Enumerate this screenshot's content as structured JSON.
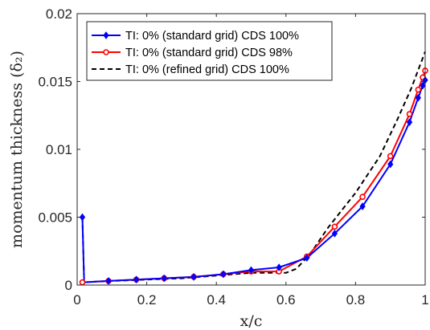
{
  "chart_data": {
    "type": "line",
    "xlabel": "x/c",
    "ylabel": "momentum thickness (δ₂)",
    "xlim": [
      0,
      1
    ],
    "ylim": [
      0,
      0.02
    ],
    "xticks": [
      0,
      0.2,
      0.4,
      0.6,
      0.8,
      1
    ],
    "yticks": [
      0,
      0.005,
      0.01,
      0.015,
      0.02
    ],
    "xtick_labels": [
      "0",
      "0.2",
      "0.4",
      "0.6",
      "0.8",
      "1"
    ],
    "ytick_labels": [
      "0",
      "0.005",
      "0.01",
      "0.015",
      "0.02"
    ],
    "grid": false,
    "legend_position": "top-left",
    "series": [
      {
        "name": "TI: 0% (standard grid) CDS 100%",
        "color": "#0000ff",
        "line_style": "solid",
        "marker": "diamond",
        "x": [
          0.015,
          0.02,
          0.09,
          0.17,
          0.25,
          0.335,
          0.42,
          0.5,
          0.58,
          0.66,
          0.74,
          0.82,
          0.9,
          0.955,
          0.98,
          0.993,
          1.0
        ],
        "y": [
          0.005,
          0.0002,
          0.0003,
          0.0004,
          0.0005,
          0.0006,
          0.0008,
          0.0011,
          0.0013,
          0.002,
          0.0038,
          0.0058,
          0.0089,
          0.012,
          0.0138,
          0.0147,
          0.0151
        ],
        "marker_x": [
          0.015,
          0.09,
          0.17,
          0.25,
          0.335,
          0.42,
          0.5,
          0.58,
          0.66,
          0.74,
          0.82,
          0.9,
          0.955,
          0.98,
          0.993,
          1.0
        ],
        "marker_y": [
          0.005,
          0.0003,
          0.0004,
          0.0005,
          0.0006,
          0.0008,
          0.0011,
          0.0013,
          0.002,
          0.0038,
          0.0058,
          0.0089,
          0.012,
          0.0138,
          0.0147,
          0.0151
        ]
      },
      {
        "name": "TI: 0% (standard grid) CDS 98%",
        "color": "#ff0000",
        "line_style": "solid",
        "marker": "circle",
        "x": [
          0.015,
          0.09,
          0.17,
          0.25,
          0.335,
          0.42,
          0.5,
          0.58,
          0.66,
          0.74,
          0.82,
          0.9,
          0.955,
          0.98,
          0.993,
          1.0
        ],
        "y": [
          0.0002,
          0.0003,
          0.0004,
          0.0005,
          0.0006,
          0.0008,
          0.001,
          0.001,
          0.0021,
          0.0043,
          0.0065,
          0.0095,
          0.0126,
          0.0144,
          0.0153,
          0.0158
        ],
        "marker_x": [
          0.015,
          0.09,
          0.17,
          0.25,
          0.335,
          0.42,
          0.5,
          0.58,
          0.66,
          0.74,
          0.82,
          0.9,
          0.955,
          0.98,
          0.993,
          1.0
        ],
        "marker_y": [
          0.0002,
          0.0003,
          0.0004,
          0.0005,
          0.0006,
          0.0008,
          0.001,
          0.001,
          0.0021,
          0.0043,
          0.0065,
          0.0095,
          0.0126,
          0.0144,
          0.0153,
          0.0158
        ]
      },
      {
        "name": "TI: 0% (refined grid) CDS 100%",
        "color": "#000000",
        "line_style": "dashed",
        "marker": "none",
        "x": [
          0.015,
          0.02,
          0.1,
          0.2,
          0.3,
          0.4,
          0.5,
          0.6,
          0.63,
          0.67,
          0.72,
          0.8,
          0.87,
          0.92,
          0.96,
          1.0
        ],
        "y": [
          0.005,
          0.0002,
          0.0003,
          0.0004,
          0.0005,
          0.0007,
          0.0009,
          0.0009,
          0.0012,
          0.0023,
          0.0042,
          0.0068,
          0.0095,
          0.0122,
          0.0145,
          0.0172
        ],
        "marker_x": [],
        "marker_y": []
      }
    ]
  }
}
